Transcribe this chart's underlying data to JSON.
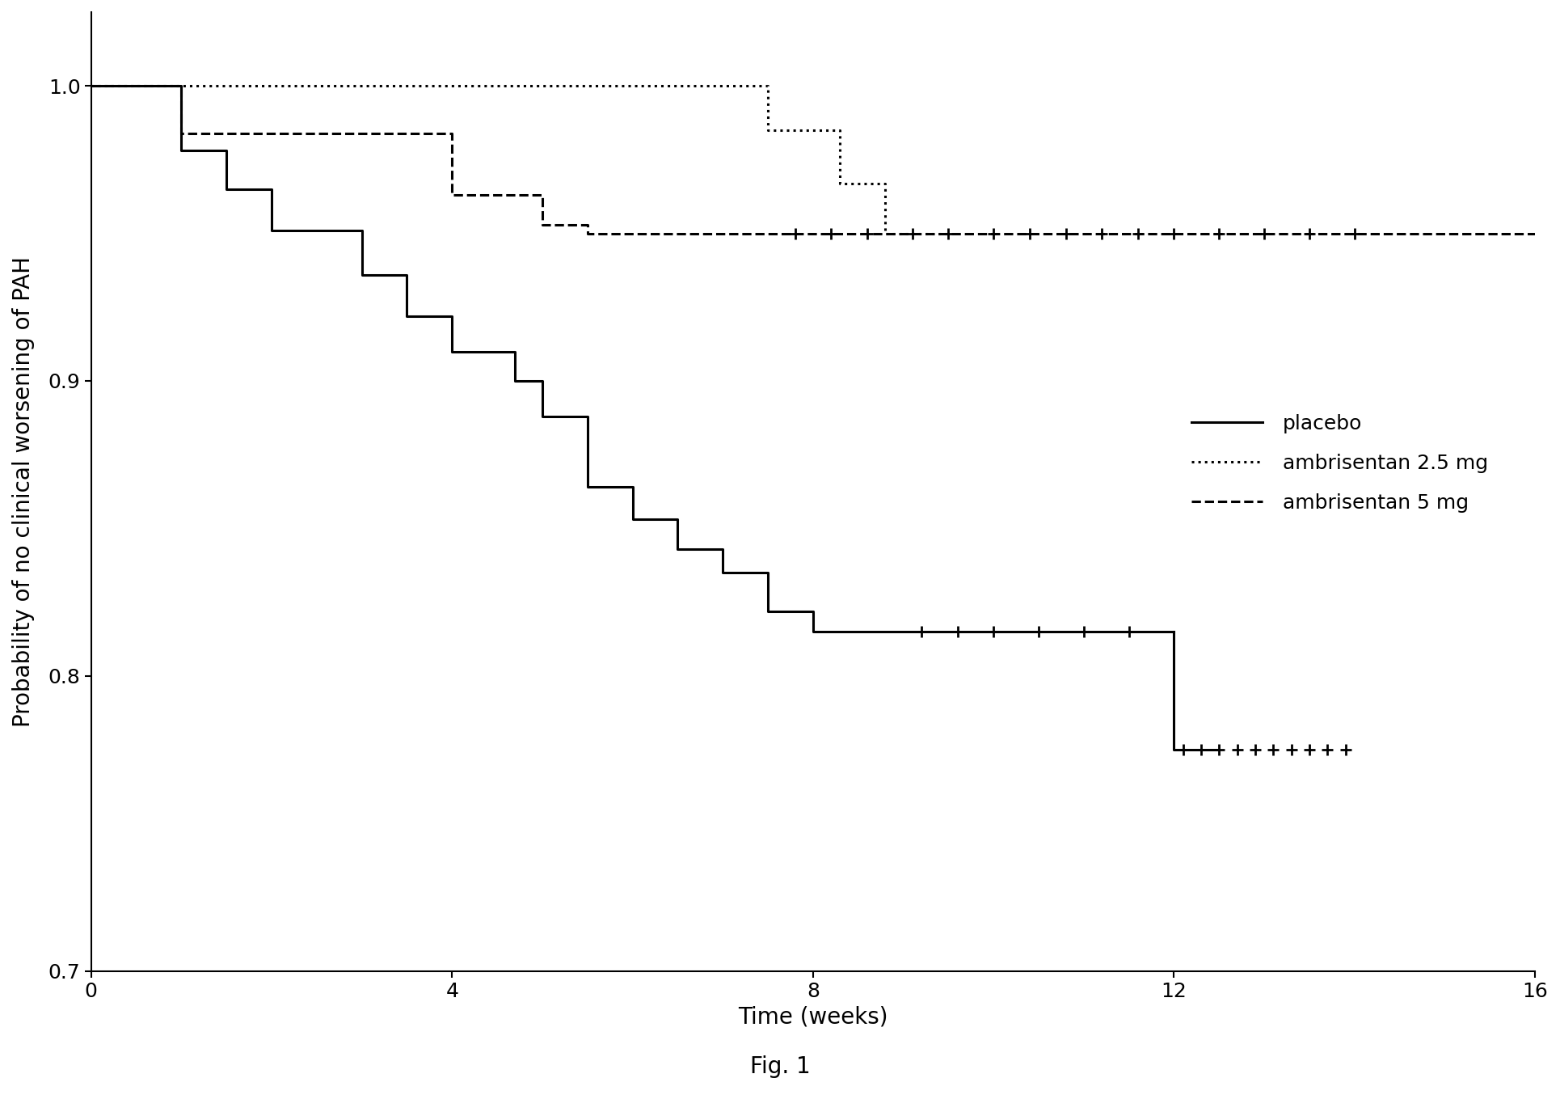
{
  "title": "Fig. 1",
  "xlabel": "Time (weeks)",
  "ylabel": "Probability of no clinical worsening of PAH",
  "xlim": [
    0,
    16
  ],
  "ylim": [
    0.7,
    1.025
  ],
  "xticks": [
    0,
    4,
    8,
    12,
    16
  ],
  "yticks": [
    0.7,
    0.8,
    0.9,
    1.0
  ],
  "ytick_labels": [
    "0.7",
    "0.8",
    "0.9",
    "1.0"
  ],
  "background_color": "#ffffff",
  "placebo_t": [
    0,
    1.0,
    1.0,
    1.5,
    1.5,
    2.0,
    2.0,
    3.0,
    3.0,
    3.5,
    3.5,
    4.0,
    4.0,
    4.7,
    4.7,
    5.0,
    5.0,
    5.5,
    5.5,
    6.0,
    6.0,
    6.5,
    6.5,
    7.0,
    7.0,
    7.5,
    7.5,
    8.0,
    8.0,
    9.0,
    9.0,
    12.0
  ],
  "placebo_p": [
    1.0,
    1.0,
    0.978,
    0.978,
    0.965,
    0.965,
    0.951,
    0.951,
    0.936,
    0.936,
    0.922,
    0.922,
    0.91,
    0.91,
    0.9,
    0.9,
    0.888,
    0.888,
    0.864,
    0.864,
    0.853,
    0.853,
    0.843,
    0.843,
    0.835,
    0.835,
    0.822,
    0.822,
    0.815,
    0.815,
    0.815,
    0.815
  ],
  "placebo_censor_t": [
    9.2,
    9.6,
    10.0,
    10.5,
    11.0,
    11.5
  ],
  "placebo_censor_p": [
    0.815,
    0.815,
    0.815,
    0.815,
    0.815,
    0.815
  ],
  "placebo_drop_t": [
    12.0,
    12.0,
    12.5
  ],
  "placebo_drop_p": [
    0.815,
    0.775,
    0.775
  ],
  "placebo_final_censor_t": [
    12.1,
    12.3,
    12.5,
    12.7,
    12.9,
    13.1,
    13.3,
    13.5,
    13.7,
    13.9
  ],
  "placebo_final_censor_p": [
    0.775,
    0.775,
    0.775,
    0.775,
    0.775,
    0.775,
    0.775,
    0.775,
    0.775,
    0.775
  ],
  "amb25_t": [
    0,
    7.5,
    7.5,
    8.3,
    8.3,
    8.8,
    8.8,
    9.5
  ],
  "amb25_p": [
    1.0,
    1.0,
    0.985,
    0.985,
    0.967,
    0.967,
    0.95,
    0.95
  ],
  "amb5_t": [
    0,
    1.0,
    1.0,
    4.0,
    4.0,
    5.0,
    5.0,
    5.5,
    5.5,
    7.5,
    7.5,
    16.0
  ],
  "amb5_p": [
    1.0,
    1.0,
    0.984,
    0.984,
    0.963,
    0.963,
    0.953,
    0.953,
    0.95,
    0.95,
    0.95,
    0.95
  ],
  "amb5_censor_t": [
    7.8,
    8.2,
    8.6,
    9.1,
    9.5,
    10.0,
    10.4,
    10.8,
    11.2,
    11.6,
    12.0,
    12.5,
    13.0,
    13.5,
    14.0
  ],
  "amb5_censor_p": [
    0.95,
    0.95,
    0.95,
    0.95,
    0.95,
    0.95,
    0.95,
    0.95,
    0.95,
    0.95,
    0.95,
    0.95,
    0.95,
    0.95,
    0.95
  ],
  "linewidth": 2.2,
  "censor_markersize": 10,
  "censor_markeredgewidth": 2.0,
  "legend_fontsize": 18,
  "axis_label_fontsize": 20,
  "tick_fontsize": 18,
  "fig_caption_fontsize": 20,
  "spine_linewidth": 1.5
}
